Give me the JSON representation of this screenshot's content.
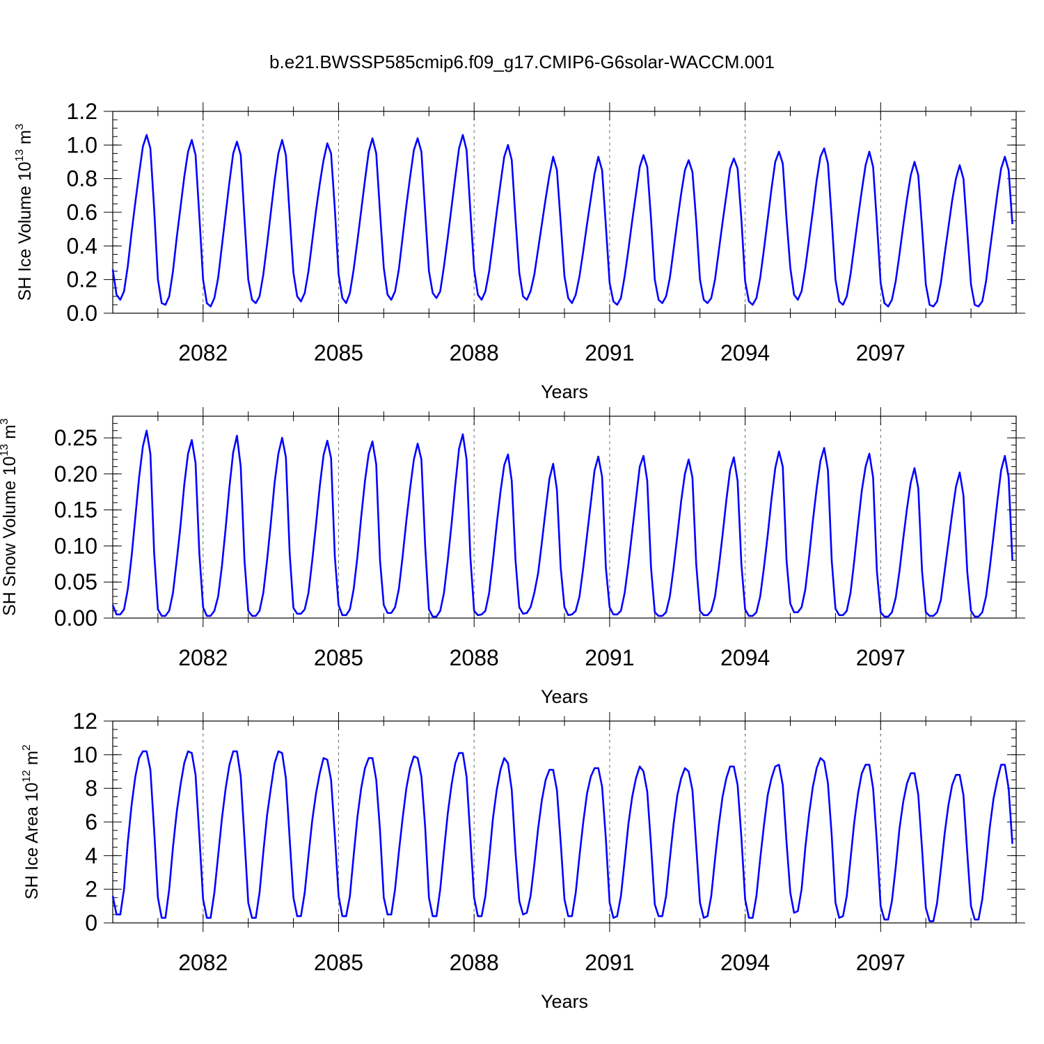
{
  "title": "b.e21.BWSSP585cmip6.f09_g17.CMIP6-G6solar-WACCM.001",
  "colors": {
    "series": "#0000ff",
    "axis": "#000000",
    "grid": "#666666"
  },
  "chart_data": [
    {
      "type": "line",
      "ylabel": {
        "main": "SH Ice Volume 10",
        "sup": "13",
        "unit": " m",
        "unit_sup": "3"
      },
      "xlabel": "Years",
      "xlim": [
        2080,
        2100
      ],
      "ylim": [
        0,
        1.2
      ],
      "yticks": [
        0.0,
        0.2,
        0.4,
        0.6,
        0.8,
        1.0,
        1.2
      ],
      "ytick_labels": [
        "0.0",
        "0.2",
        "0.4",
        "0.6",
        "0.8",
        "1.0",
        "1.2"
      ],
      "yminor_step": 0.05,
      "xticks": [
        2082,
        2085,
        2088,
        2091,
        2094,
        2097
      ],
      "xtick_labels": [
        "2082",
        "2085",
        "2088",
        "2091",
        "2094",
        "2097"
      ],
      "xminor_step": 1,
      "grid": "vertical dashed at labeled years",
      "series": [
        {
          "start_year": 2080,
          "step": 0.0833333,
          "color": "#0000ff",
          "values": [
            0.26,
            0.11,
            0.08,
            0.13,
            0.28,
            0.48,
            0.66,
            0.83,
            0.99,
            1.06,
            0.98,
            0.62,
            0.2,
            0.06,
            0.05,
            0.1,
            0.25,
            0.45,
            0.63,
            0.81,
            0.96,
            1.03,
            0.94,
            0.58,
            0.2,
            0.06,
            0.04,
            0.09,
            0.21,
            0.4,
            0.59,
            0.78,
            0.95,
            1.02,
            0.94,
            0.56,
            0.2,
            0.08,
            0.06,
            0.1,
            0.23,
            0.41,
            0.6,
            0.79,
            0.95,
            1.03,
            0.94,
            0.58,
            0.24,
            0.1,
            0.07,
            0.12,
            0.25,
            0.43,
            0.61,
            0.77,
            0.91,
            1.01,
            0.95,
            0.62,
            0.23,
            0.09,
            0.06,
            0.12,
            0.26,
            0.43,
            0.61,
            0.79,
            0.96,
            1.04,
            0.95,
            0.6,
            0.27,
            0.11,
            0.08,
            0.13,
            0.26,
            0.45,
            0.64,
            0.81,
            0.97,
            1.04,
            0.96,
            0.6,
            0.25,
            0.12,
            0.09,
            0.13,
            0.28,
            0.45,
            0.63,
            0.81,
            0.98,
            1.06,
            0.97,
            0.61,
            0.26,
            0.11,
            0.08,
            0.13,
            0.25,
            0.42,
            0.6,
            0.77,
            0.93,
            1.0,
            0.91,
            0.56,
            0.24,
            0.1,
            0.08,
            0.13,
            0.23,
            0.38,
            0.53,
            0.68,
            0.82,
            0.93,
            0.85,
            0.54,
            0.22,
            0.09,
            0.06,
            0.11,
            0.22,
            0.37,
            0.53,
            0.68,
            0.83,
            0.93,
            0.85,
            0.52,
            0.18,
            0.07,
            0.05,
            0.09,
            0.22,
            0.38,
            0.55,
            0.71,
            0.87,
            0.94,
            0.87,
            0.56,
            0.2,
            0.08,
            0.06,
            0.1,
            0.21,
            0.38,
            0.55,
            0.71,
            0.85,
            0.91,
            0.84,
            0.55,
            0.2,
            0.08,
            0.06,
            0.09,
            0.2,
            0.37,
            0.54,
            0.7,
            0.86,
            0.92,
            0.86,
            0.56,
            0.19,
            0.07,
            0.05,
            0.09,
            0.21,
            0.38,
            0.56,
            0.74,
            0.9,
            0.96,
            0.89,
            0.56,
            0.27,
            0.11,
            0.08,
            0.13,
            0.27,
            0.44,
            0.61,
            0.79,
            0.93,
            0.98,
            0.89,
            0.56,
            0.2,
            0.07,
            0.05,
            0.1,
            0.23,
            0.4,
            0.57,
            0.73,
            0.88,
            0.96,
            0.87,
            0.54,
            0.18,
            0.06,
            0.04,
            0.08,
            0.19,
            0.35,
            0.52,
            0.68,
            0.82,
            0.9,
            0.82,
            0.51,
            0.17,
            0.05,
            0.04,
            0.07,
            0.18,
            0.35,
            0.51,
            0.67,
            0.8,
            0.88,
            0.8,
            0.49,
            0.17,
            0.05,
            0.04,
            0.07,
            0.19,
            0.37,
            0.54,
            0.71,
            0.86,
            0.93,
            0.85,
            0.53
          ]
        }
      ]
    },
    {
      "type": "line",
      "ylabel": {
        "main": "SH Snow Volume 10",
        "sup": "13",
        "unit": " m",
        "unit_sup": "3"
      },
      "xlabel": "Years",
      "xlim": [
        2080,
        2100
      ],
      "ylim": [
        0,
        0.28
      ],
      "yticks": [
        0.0,
        0.05,
        0.1,
        0.15,
        0.2,
        0.25
      ],
      "ytick_labels": [
        "0.00",
        "0.05",
        "0.10",
        "0.15",
        "0.20",
        "0.25"
      ],
      "yminor_step": 0.01,
      "xticks": [
        2082,
        2085,
        2088,
        2091,
        2094,
        2097
      ],
      "xtick_labels": [
        "2082",
        "2085",
        "2088",
        "2091",
        "2094",
        "2097"
      ],
      "xminor_step": 1,
      "grid": "vertical dashed at labeled years",
      "series": [
        {
          "start_year": 2080,
          "step": 0.0833333,
          "color": "#0000ff",
          "values": [
            0.018,
            0.005,
            0.005,
            0.012,
            0.04,
            0.085,
            0.14,
            0.195,
            0.238,
            0.26,
            0.228,
            0.09,
            0.012,
            0.003,
            0.003,
            0.01,
            0.035,
            0.08,
            0.128,
            0.185,
            0.228,
            0.247,
            0.215,
            0.09,
            0.015,
            0.003,
            0.003,
            0.01,
            0.03,
            0.072,
            0.125,
            0.182,
            0.23,
            0.253,
            0.21,
            0.08,
            0.01,
            0.003,
            0.003,
            0.01,
            0.035,
            0.08,
            0.132,
            0.188,
            0.228,
            0.25,
            0.223,
            0.09,
            0.014,
            0.006,
            0.006,
            0.012,
            0.035,
            0.08,
            0.13,
            0.183,
            0.226,
            0.246,
            0.222,
            0.085,
            0.018,
            0.004,
            0.004,
            0.012,
            0.04,
            0.085,
            0.14,
            0.19,
            0.228,
            0.245,
            0.213,
            0.08,
            0.018,
            0.007,
            0.007,
            0.015,
            0.04,
            0.085,
            0.135,
            0.18,
            0.22,
            0.242,
            0.22,
            0.1,
            0.012,
            0.002,
            0.002,
            0.01,
            0.035,
            0.08,
            0.13,
            0.185,
            0.235,
            0.255,
            0.22,
            0.085,
            0.01,
            0.004,
            0.005,
            0.01,
            0.035,
            0.08,
            0.13,
            0.175,
            0.212,
            0.227,
            0.19,
            0.08,
            0.015,
            0.006,
            0.007,
            0.015,
            0.035,
            0.062,
            0.105,
            0.15,
            0.193,
            0.214,
            0.178,
            0.07,
            0.015,
            0.004,
            0.005,
            0.01,
            0.03,
            0.07,
            0.115,
            0.16,
            0.205,
            0.224,
            0.196,
            0.07,
            0.015,
            0.005,
            0.005,
            0.01,
            0.035,
            0.075,
            0.12,
            0.165,
            0.21,
            0.225,
            0.19,
            0.07,
            0.008,
            0.003,
            0.003,
            0.008,
            0.03,
            0.07,
            0.115,
            0.162,
            0.2,
            0.22,
            0.195,
            0.075,
            0.01,
            0.004,
            0.004,
            0.01,
            0.03,
            0.07,
            0.115,
            0.163,
            0.205,
            0.223,
            0.19,
            0.075,
            0.012,
            0.003,
            0.003,
            0.008,
            0.03,
            0.07,
            0.115,
            0.165,
            0.208,
            0.231,
            0.21,
            0.08,
            0.02,
            0.008,
            0.008,
            0.015,
            0.04,
            0.085,
            0.135,
            0.18,
            0.218,
            0.236,
            0.205,
            0.08,
            0.013,
            0.004,
            0.004,
            0.01,
            0.035,
            0.08,
            0.13,
            0.177,
            0.21,
            0.228,
            0.195,
            0.065,
            0.008,
            0.002,
            0.002,
            0.008,
            0.028,
            0.065,
            0.11,
            0.152,
            0.188,
            0.208,
            0.18,
            0.065,
            0.008,
            0.003,
            0.003,
            0.008,
            0.025,
            0.065,
            0.105,
            0.145,
            0.182,
            0.202,
            0.17,
            0.065,
            0.01,
            0.002,
            0.002,
            0.008,
            0.03,
            0.07,
            0.115,
            0.162,
            0.205,
            0.225,
            0.195,
            0.08
          ]
        }
      ]
    },
    {
      "type": "line",
      "ylabel": {
        "main": "SH Ice Area 10",
        "sup": "12",
        "unit": " m",
        "unit_sup": "2"
      },
      "xlabel": "Years",
      "xlim": [
        2080,
        2100
      ],
      "ylim": [
        0,
        12
      ],
      "yticks": [
        0,
        2,
        4,
        6,
        8,
        10,
        12
      ],
      "ytick_labels": [
        "0",
        "2",
        "4",
        "6",
        "8",
        "10",
        "12"
      ],
      "yminor_step": 0.5,
      "xticks": [
        2082,
        2085,
        2088,
        2091,
        2094,
        2097
      ],
      "xtick_labels": [
        "2082",
        "2085",
        "2088",
        "2091",
        "2094",
        "2097"
      ],
      "xminor_step": 1,
      "grid": "vertical dashed at labeled years",
      "series": [
        {
          "start_year": 2080,
          "step": 0.0833333,
          "color": "#0000ff",
          "values": [
            1.6,
            0.5,
            0.5,
            2.0,
            4.8,
            7.0,
            8.7,
            9.8,
            10.2,
            10.2,
            9.1,
            5.5,
            1.5,
            0.3,
            0.3,
            2.0,
            4.5,
            6.6,
            8.2,
            9.5,
            10.2,
            10.1,
            8.8,
            5.2,
            1.4,
            0.3,
            0.3,
            1.8,
            4.0,
            6.2,
            8.0,
            9.4,
            10.2,
            10.2,
            8.7,
            5.0,
            1.2,
            0.3,
            0.3,
            1.8,
            4.2,
            6.4,
            8.0,
            9.5,
            10.2,
            10.1,
            8.6,
            5.0,
            1.5,
            0.4,
            0.4,
            1.8,
            4.0,
            6.1,
            7.7,
            8.9,
            9.8,
            9.7,
            8.5,
            5.2,
            1.6,
            0.4,
            0.4,
            1.6,
            4.0,
            6.3,
            8.0,
            9.2,
            9.8,
            9.8,
            8.5,
            5.5,
            1.5,
            0.5,
            0.5,
            2.0,
            4.2,
            6.2,
            8.0,
            9.2,
            9.9,
            9.8,
            8.7,
            5.7,
            1.5,
            0.4,
            0.4,
            2.0,
            4.3,
            6.5,
            8.2,
            9.5,
            10.1,
            10.1,
            8.7,
            5.1,
            1.5,
            0.4,
            0.4,
            1.6,
            3.8,
            6.2,
            7.9,
            9.1,
            9.8,
            9.5,
            7.9,
            4.2,
            1.3,
            0.5,
            0.6,
            1.6,
            3.5,
            5.6,
            7.3,
            8.5,
            9.1,
            9.1,
            7.9,
            4.8,
            1.4,
            0.4,
            0.4,
            1.8,
            4.0,
            6.0,
            7.7,
            8.7,
            9.2,
            9.2,
            8.1,
            5.0,
            1.2,
            0.3,
            0.4,
            1.6,
            3.7,
            5.9,
            7.5,
            8.6,
            9.3,
            9.0,
            7.8,
            4.6,
            1.1,
            0.4,
            0.4,
            1.6,
            3.8,
            5.9,
            7.6,
            8.6,
            9.2,
            9.0,
            7.9,
            4.6,
            1.2,
            0.3,
            0.4,
            1.6,
            3.8,
            5.8,
            7.5,
            8.6,
            9.3,
            9.3,
            8.2,
            5.1,
            1.4,
            0.3,
            0.3,
            1.6,
            3.8,
            5.8,
            7.6,
            8.6,
            9.3,
            9.4,
            8.2,
            4.8,
            1.8,
            0.6,
            0.7,
            2.0,
            4.5,
            6.5,
            8.1,
            9.2,
            9.8,
            9.6,
            8.3,
            5.2,
            1.2,
            0.3,
            0.4,
            1.6,
            3.8,
            6.0,
            7.7,
            8.9,
            9.4,
            9.4,
            8.0,
            4.8,
            1.0,
            0.2,
            0.2,
            1.3,
            3.3,
            5.6,
            7.2,
            8.3,
            8.9,
            8.9,
            7.6,
            4.4,
            0.9,
            0.1,
            0.1,
            1.2,
            3.2,
            5.3,
            7.0,
            8.2,
            8.8,
            8.8,
            7.6,
            4.2,
            1.0,
            0.2,
            0.2,
            1.4,
            3.5,
            5.7,
            7.4,
            8.5,
            9.4,
            9.4,
            8.0,
            4.7
          ]
        }
      ]
    }
  ]
}
